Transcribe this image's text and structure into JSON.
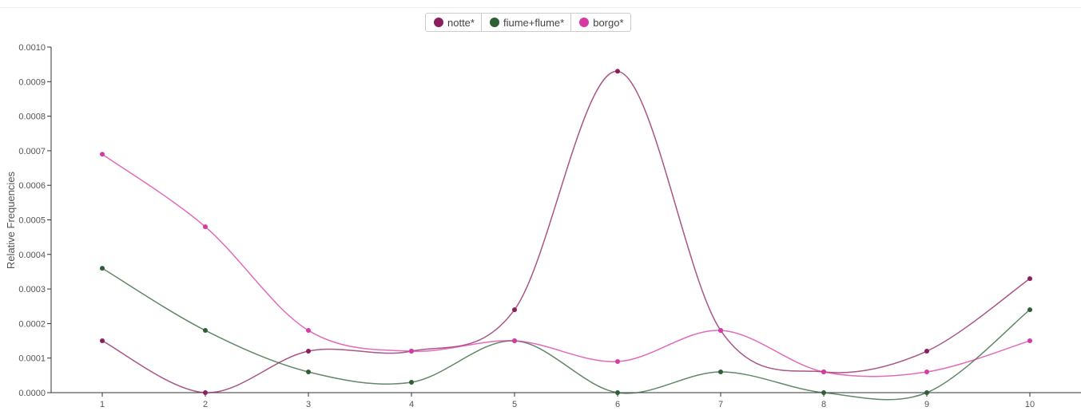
{
  "chart_data": {
    "type": "line",
    "title": "",
    "xlabel": "",
    "ylabel": "Relative Frequencies",
    "x": [
      1,
      2,
      3,
      4,
      5,
      6,
      7,
      8,
      9,
      10
    ],
    "xlim": [
      1,
      10
    ],
    "ylim": [
      0,
      0.001
    ],
    "yticks": [
      0,
      0.0001,
      0.0002,
      0.0003,
      0.0004,
      0.0005,
      0.0006,
      0.0007,
      0.0008,
      0.0009,
      0.001
    ],
    "ytick_labels": [
      "0.0000",
      "0.0001",
      "0.0002",
      "0.0003",
      "0.0004",
      "0.0005",
      "0.0006",
      "0.0007",
      "0.0008",
      "0.0009",
      "0.0010"
    ],
    "xtick_labels": [
      "1",
      "2",
      "3",
      "4",
      "5",
      "6",
      "7",
      "8",
      "9",
      "10"
    ],
    "grid": false,
    "legend_position": "top-center",
    "series": [
      {
        "name": "notte*",
        "color": "#8b1f5e",
        "values": [
          0.00015,
          0.0,
          0.00012,
          0.00012,
          0.00024,
          0.00093,
          0.00018,
          6e-05,
          0.00012,
          0.00033
        ]
      },
      {
        "name": "fiume+flume*",
        "color": "#2f5f34",
        "values": [
          0.00036,
          0.00018,
          6e-05,
          3e-05,
          0.00015,
          0.0,
          6e-05,
          0.0,
          0.0,
          0.00024
        ]
      },
      {
        "name": "borgo*",
        "color": "#d63ba3",
        "values": [
          0.00069,
          0.00048,
          0.00018,
          0.00012,
          0.00015,
          9e-05,
          0.00018,
          6e-05,
          6e-05,
          0.00015
        ]
      }
    ]
  }
}
